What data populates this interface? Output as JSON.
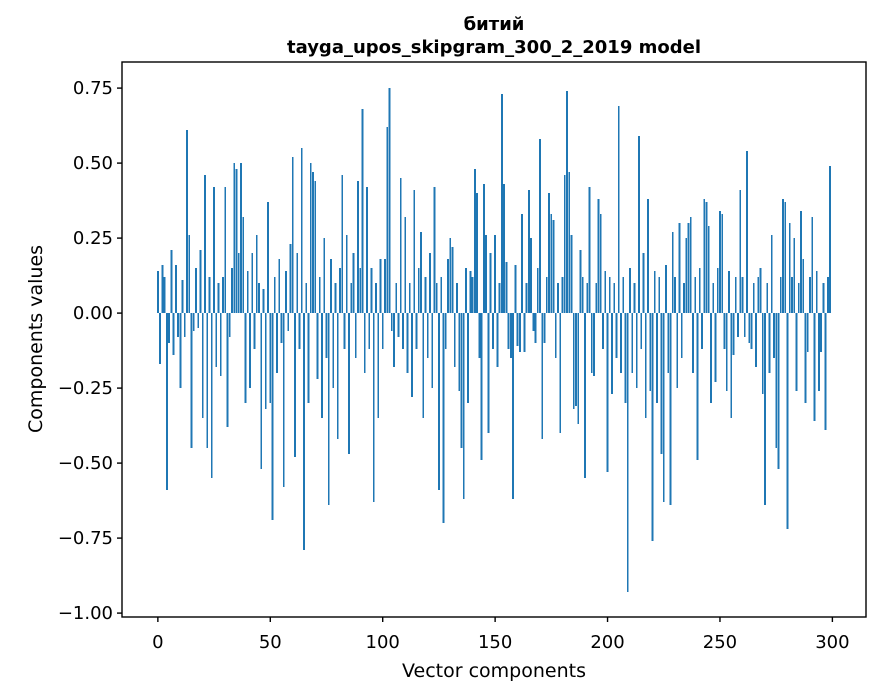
{
  "figure": {
    "title_line1": "битий",
    "title_line2": "tayga_upos_skipgram_300_2_2019 model"
  },
  "chart_data": {
    "type": "bar",
    "title": "битий",
    "subtitle": "tayga_upos_skipgram_300_2_2019 model",
    "xlabel": "Vector components",
    "ylabel": "Components values",
    "bar_color": "#1f77b4",
    "axes_color": "#000000",
    "background": "#ffffff",
    "grid": false,
    "legend": null,
    "n_components": 300,
    "xlim": [
      -15.95,
      314.95
    ],
    "ylim": [
      -1.013,
      0.837
    ],
    "x_tick_values": [
      0,
      50,
      100,
      150,
      200,
      250,
      300
    ],
    "x_tick_labels": [
      "0",
      "50",
      "100",
      "150",
      "200",
      "250",
      "300"
    ],
    "y_tick_values": [
      0.75,
      0.5,
      0.25,
      0.0,
      -0.25,
      -0.5,
      -0.75,
      -1.0
    ],
    "y_tick_labels": [
      "0.75",
      "0.50",
      "0.25",
      "0.00",
      "−0.25",
      "−0.50",
      "−0.75",
      "−1.00"
    ],
    "values": [
      0.14,
      -0.17,
      0.16,
      0.12,
      -0.59,
      -0.1,
      0.21,
      -0.14,
      0.16,
      -0.08,
      -0.25,
      0.11,
      -0.08,
      0.61,
      0.26,
      -0.45,
      -0.06,
      0.15,
      -0.05,
      0.21,
      -0.35,
      0.46,
      -0.45,
      0.12,
      -0.55,
      0.42,
      -0.18,
      0.1,
      -0.21,
      0.12,
      0.42,
      -0.38,
      -0.08,
      0.15,
      0.5,
      0.48,
      0.2,
      0.5,
      0.32,
      -0.3,
      0.14,
      -0.25,
      0.2,
      -0.12,
      0.26,
      0.1,
      -0.52,
      0.08,
      -0.32,
      0.37,
      -0.3,
      -0.69,
      0.12,
      -0.2,
      0.18,
      -0.1,
      -0.58,
      0.14,
      -0.06,
      0.23,
      0.52,
      -0.48,
      0.2,
      -0.12,
      0.55,
      -0.79,
      0.1,
      -0.3,
      0.5,
      0.47,
      0.44,
      -0.22,
      0.12,
      -0.35,
      0.25,
      -0.15,
      -0.64,
      0.18,
      -0.25,
      0.1,
      -0.42,
      0.15,
      0.46,
      -0.12,
      0.26,
      -0.47,
      0.1,
      0.2,
      -0.15,
      0.44,
      0.15,
      0.68,
      -0.2,
      0.42,
      -0.12,
      0.15,
      -0.63,
      0.1,
      -0.35,
      0.18,
      -0.12,
      0.18,
      0.62,
      0.75,
      -0.06,
      -0.18,
      0.1,
      -0.08,
      0.45,
      -0.12,
      0.32,
      -0.2,
      0.1,
      -0.28,
      0.41,
      -0.12,
      0.15,
      0.27,
      -0.35,
      0.12,
      -0.15,
      0.2,
      -0.25,
      0.42,
      0.1,
      -0.59,
      0.12,
      -0.7,
      -0.12,
      0.18,
      0.25,
      0.22,
      -0.18,
      0.1,
      -0.26,
      -0.45,
      -0.62,
      0.15,
      -0.3,
      0.14,
      0.12,
      0.48,
      0.4,
      -0.15,
      -0.49,
      0.43,
      0.26,
      -0.4,
      0.2,
      -0.12,
      0.26,
      -0.18,
      0.1,
      0.73,
      0.43,
      0.17,
      -0.12,
      -0.15,
      -0.62,
      0.16,
      -0.11,
      -0.13,
      0.33,
      -0.13,
      0.1,
      0.41,
      0.25,
      -0.06,
      -0.1,
      0.15,
      0.58,
      -0.42,
      -0.1,
      0.12,
      0.4,
      0.33,
      0.31,
      -0.15,
      0.1,
      -0.4,
      0.12,
      0.46,
      0.74,
      0.47,
      0.26,
      -0.32,
      -0.31,
      -0.37,
      0.21,
      0.12,
      -0.55,
      0.1,
      0.42,
      -0.2,
      -0.21,
      0.1,
      0.38,
      0.33,
      -0.12,
      0.14,
      -0.53,
      0.12,
      -0.27,
      0.1,
      -0.15,
      0.69,
      -0.2,
      0.12,
      -0.3,
      -0.93,
      0.15,
      -0.2,
      0.1,
      -0.25,
      0.59,
      -0.12,
      0.2,
      -0.35,
      0.38,
      -0.26,
      -0.76,
      0.14,
      -0.3,
      0.12,
      -0.47,
      -0.63,
      0.16,
      -0.2,
      -0.64,
      0.27,
      0.12,
      -0.25,
      0.3,
      -0.15,
      0.1,
      0.25,
      0.3,
      0.32,
      -0.2,
      0.12,
      -0.49,
      0.15,
      -0.12,
      0.38,
      0.37,
      0.29,
      -0.3,
      0.1,
      -0.23,
      0.15,
      0.34,
      0.33,
      -0.12,
      -0.26,
      0.14,
      -0.35,
      -0.14,
      0.12,
      -0.08,
      0.41,
      0.12,
      -0.08,
      0.54,
      -0.1,
      -0.12,
      0.1,
      -0.18,
      0.12,
      0.15,
      -0.27,
      -0.64,
      0.1,
      -0.2,
      0.26,
      -0.15,
      -0.45,
      -0.52,
      0.12,
      0.38,
      0.37,
      -0.72,
      0.3,
      0.12,
      0.25,
      -0.26,
      0.1,
      0.34,
      0.18,
      -0.3,
      -0.13,
      0.12,
      0.32,
      -0.36,
      0.14,
      -0.26,
      -0.13,
      0.1,
      -0.39,
      0.12,
      0.49
    ]
  }
}
